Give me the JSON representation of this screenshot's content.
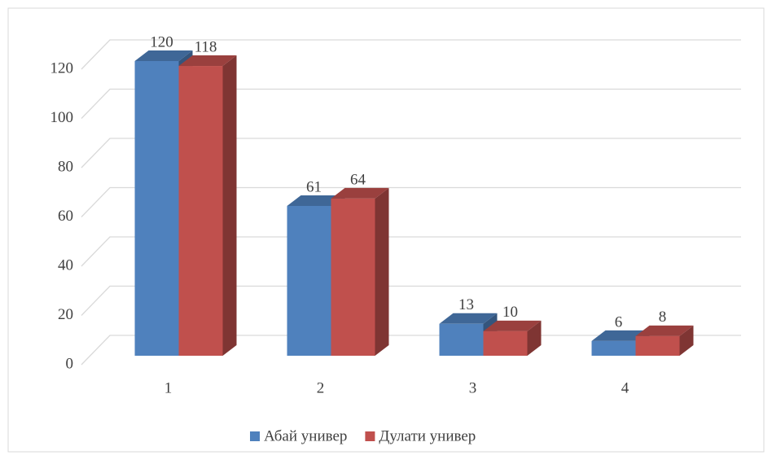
{
  "chart_data": {
    "type": "bar3d",
    "categories": [
      "1",
      "2",
      "3",
      "4"
    ],
    "series": [
      {
        "name": "Абай универ",
        "color": "#4f81bd",
        "values": [
          120,
          61,
          13,
          6
        ]
      },
      {
        "name": "Дулати универ",
        "color": "#c0504d",
        "values": [
          118,
          64,
          10,
          8
        ]
      }
    ],
    "ylim": [
      0,
      120
    ],
    "yticks": [
      0,
      20,
      40,
      60,
      80,
      100,
      120
    ],
    "grid": true,
    "legend": "bottom"
  }
}
